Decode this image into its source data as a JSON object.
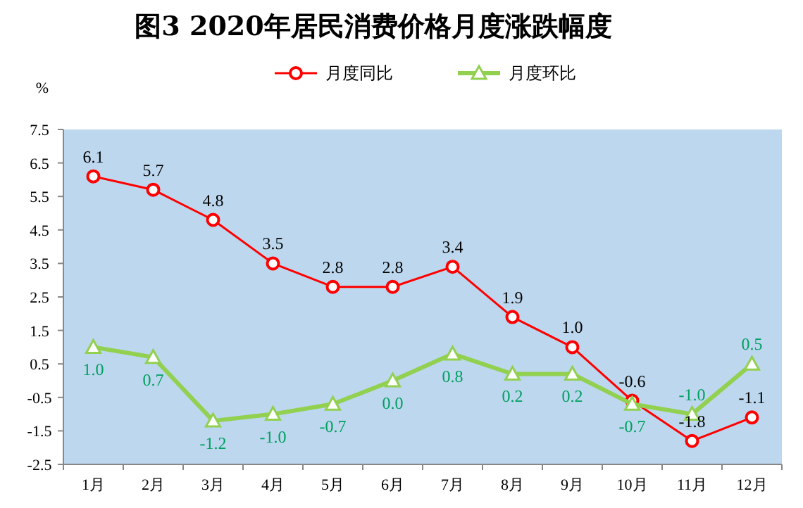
{
  "chart_data": {
    "type": "line",
    "title": "图3 2020年居民消费价格月度涨跌幅度",
    "ylabel": "%",
    "categories": [
      "1月",
      "2月",
      "3月",
      "4月",
      "5月",
      "6月",
      "7月",
      "8月",
      "9月",
      "10月",
      "11月",
      "12月"
    ],
    "series": [
      {
        "name": "月度同比",
        "color": "#ff0000",
        "marker": "circle",
        "values": [
          6.1,
          5.7,
          4.8,
          3.5,
          2.8,
          2.8,
          3.4,
          1.9,
          1.0,
          -0.6,
          -1.8,
          -1.1
        ],
        "value_labels": [
          "6.1",
          "5.7",
          "4.8",
          "3.5",
          "2.8",
          "2.8",
          "3.4",
          "1.9",
          "1.0",
          "-0.6",
          "-1.8",
          "-1.1"
        ]
      },
      {
        "name": "月度环比",
        "color": "#92d050",
        "marker": "triangle",
        "values": [
          1.0,
          0.7,
          -1.2,
          -1.0,
          -0.7,
          0.0,
          0.8,
          0.2,
          0.2,
          -0.7,
          -1.0,
          0.5
        ],
        "value_labels": [
          "1.0",
          "0.7",
          "-1.2",
          "-1.0",
          "-0.7",
          "0.0",
          "0.8",
          "0.2",
          "0.2",
          "-0.7",
          "-1.0",
          "0.5"
        ]
      }
    ],
    "ylim": [
      -2.5,
      7.5
    ],
    "yticks": [
      -2.5,
      -1.5,
      -0.5,
      0.5,
      1.5,
      2.5,
      3.5,
      4.5,
      5.5,
      6.5,
      7.5
    ],
    "legend": "top",
    "grid": false
  }
}
